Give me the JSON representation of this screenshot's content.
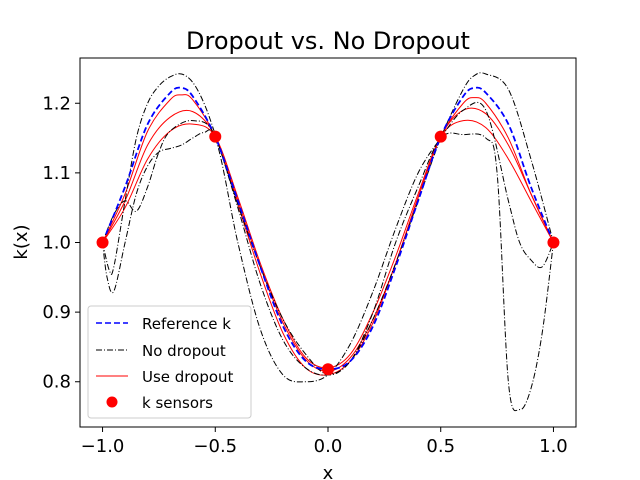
{
  "chart_data": {
    "type": "line",
    "title": "Dropout vs. No Dropout",
    "xlabel": "x",
    "ylabel": "k(x)",
    "xlim": [
      -1.1,
      1.1
    ],
    "ylim": [
      0.735,
      1.265
    ],
    "xticks": [
      -1.0,
      -0.5,
      0.0,
      0.5,
      1.0
    ],
    "xtick_labels": [
      "−1.0",
      "−0.5",
      "0.0",
      "0.5",
      "1.0"
    ],
    "yticks": [
      0.8,
      0.9,
      1.0,
      1.1,
      1.2
    ],
    "ytick_labels": [
      "0.8",
      "0.9",
      "1.0",
      "1.1",
      "1.2"
    ],
    "grid": false,
    "legend_position": "lower-left",
    "legend": [
      {
        "label": "Reference k",
        "style": "dashed",
        "color": "#0000ff"
      },
      {
        "label": "No dropout",
        "style": "dashdot",
        "color": "#000000"
      },
      {
        "label": "Use dropout",
        "style": "solid",
        "color": "#ff0000"
      },
      {
        "label": "k sensors",
        "style": "marker",
        "color": "#ff0000"
      }
    ],
    "series": [
      {
        "name": "Reference k",
        "style": "dashed",
        "color": "#0000ff",
        "x": [
          -1.0,
          -0.9,
          -0.8,
          -0.7,
          -0.65,
          -0.6,
          -0.5,
          -0.4,
          -0.3,
          -0.2,
          -0.1,
          0.0,
          0.1,
          0.2,
          0.3,
          0.4,
          0.5,
          0.6,
          0.65,
          0.7,
          0.8,
          0.9,
          1.0
        ],
        "y": [
          1.0,
          1.08,
          1.17,
          1.215,
          1.222,
          1.21,
          1.152,
          1.06,
          0.965,
          0.88,
          0.83,
          0.818,
          0.83,
          0.88,
          0.965,
          1.06,
          1.152,
          1.21,
          1.222,
          1.215,
          1.17,
          1.08,
          1.0
        ]
      },
      {
        "name": "No dropout",
        "style": "dashdot",
        "color": "#000000",
        "x": [
          -1.0,
          -0.97,
          -0.95,
          -0.9,
          -0.85,
          -0.8,
          -0.75,
          -0.7,
          -0.65,
          -0.6,
          -0.55,
          -0.5,
          -0.4,
          -0.3,
          -0.2,
          -0.1,
          0.0,
          0.1,
          0.2,
          0.3,
          0.4,
          0.5,
          0.6,
          0.65,
          0.7,
          0.8,
          0.9,
          1.0
        ],
        "y": [
          1.0,
          0.96,
          0.965,
          1.06,
          1.15,
          1.2,
          1.225,
          1.238,
          1.242,
          1.23,
          1.2,
          1.155,
          1.055,
          0.965,
          0.89,
          0.84,
          0.81,
          0.83,
          0.89,
          0.97,
          1.06,
          1.15,
          1.22,
          1.24,
          1.242,
          1.22,
          1.12,
          1.0
        ]
      },
      {
        "name": "No dropout",
        "style": "dashdot",
        "color": "#000000",
        "x": [
          -1.0,
          -0.98,
          -0.95,
          -0.9,
          -0.85,
          -0.8,
          -0.75,
          -0.7,
          -0.65,
          -0.6,
          -0.55,
          -0.5,
          -0.4,
          -0.3,
          -0.2,
          -0.1,
          0.0,
          0.1,
          0.2,
          0.3,
          0.4,
          0.5,
          0.6,
          0.7,
          0.75,
          0.8,
          0.85,
          0.9,
          0.95,
          1.0
        ],
        "y": [
          1.0,
          0.95,
          0.93,
          1.0,
          1.07,
          1.11,
          1.13,
          1.135,
          1.14,
          1.15,
          1.158,
          1.152,
          1.05,
          0.94,
          0.86,
          0.82,
          0.81,
          0.83,
          0.9,
          1.0,
          1.08,
          1.15,
          1.155,
          1.15,
          1.1,
          0.8,
          0.76,
          0.79,
          0.87,
          1.0
        ]
      },
      {
        "name": "No dropout",
        "style": "dashdot",
        "color": "#000000",
        "x": [
          -1.0,
          -0.95,
          -0.9,
          -0.85,
          -0.8,
          -0.75,
          -0.7,
          -0.6,
          -0.5,
          -0.4,
          -0.3,
          -0.2,
          -0.1,
          0.0,
          0.1,
          0.2,
          0.3,
          0.4,
          0.5,
          0.6,
          0.7,
          0.8,
          0.85,
          0.9,
          0.95,
          1.0
        ],
        "y": [
          1.0,
          1.04,
          1.06,
          1.045,
          1.08,
          1.13,
          1.16,
          1.175,
          1.15,
          1.0,
          0.875,
          0.81,
          0.8,
          0.81,
          0.855,
          0.93,
          1.02,
          1.1,
          1.15,
          1.19,
          1.19,
          1.06,
          1.0,
          0.975,
          0.965,
          1.0
        ]
      },
      {
        "name": "Use dropout",
        "style": "solid",
        "color": "#ff0000",
        "x": [
          -1.0,
          -0.9,
          -0.8,
          -0.7,
          -0.65,
          -0.6,
          -0.5,
          -0.4,
          -0.3,
          -0.2,
          -0.1,
          0.0,
          0.1,
          0.2,
          0.3,
          0.4,
          0.5,
          0.6,
          0.65,
          0.7,
          0.8,
          0.9,
          1.0
        ],
        "y": [
          1.0,
          1.07,
          1.16,
          1.205,
          1.212,
          1.205,
          1.152,
          1.06,
          0.965,
          0.885,
          0.832,
          0.815,
          0.835,
          0.89,
          0.97,
          1.065,
          1.152,
          1.2,
          1.208,
          1.2,
          1.15,
          1.07,
          1.0
        ]
      },
      {
        "name": "Use dropout",
        "style": "solid",
        "color": "#ff0000",
        "x": [
          -1.0,
          -0.9,
          -0.8,
          -0.7,
          -0.6,
          -0.5,
          -0.4,
          -0.3,
          -0.2,
          -0.1,
          0.0,
          0.1,
          0.2,
          0.3,
          0.4,
          0.5,
          0.6,
          0.7,
          0.8,
          0.9,
          1.0
        ],
        "y": [
          1.0,
          1.06,
          1.14,
          1.18,
          1.188,
          1.152,
          1.055,
          0.955,
          0.87,
          0.82,
          0.81,
          0.83,
          0.885,
          0.97,
          1.065,
          1.152,
          1.19,
          1.185,
          1.14,
          1.07,
          1.0
        ]
      },
      {
        "name": "Use dropout",
        "style": "solid",
        "color": "#ff0000",
        "x": [
          -1.0,
          -0.9,
          -0.8,
          -0.7,
          -0.6,
          -0.5,
          -0.4,
          -0.3,
          -0.2,
          -0.1,
          0.0,
          0.1,
          0.2,
          0.3,
          0.4,
          0.5,
          0.6,
          0.7,
          0.8,
          0.9,
          1.0
        ],
        "y": [
          1.0,
          1.05,
          1.12,
          1.16,
          1.17,
          1.152,
          1.065,
          0.97,
          0.89,
          0.835,
          0.82,
          0.84,
          0.9,
          0.98,
          1.07,
          1.152,
          1.175,
          1.165,
          1.12,
          1.06,
          1.0
        ]
      }
    ],
    "sensors": {
      "name": "k sensors",
      "color": "#ff0000",
      "x": [
        -1.0,
        -0.5,
        0.0,
        0.5,
        1.0
      ],
      "y": [
        1.0,
        1.152,
        0.818,
        1.152,
        1.0
      ]
    }
  }
}
